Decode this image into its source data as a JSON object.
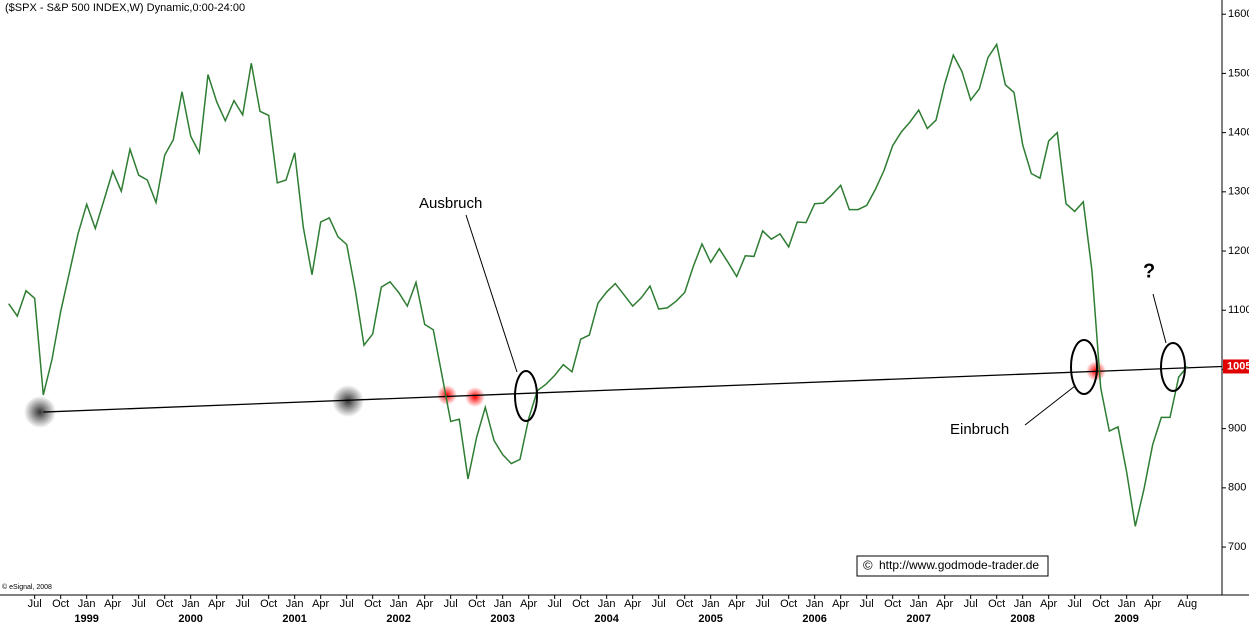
{
  "chart_data": {
    "type": "line",
    "title": "($SPX - S&P 500 INDEX,W) Dynamic,0:00-24:00",
    "x": [
      "1998-04",
      "1998-05",
      "1998-06",
      "1998-07",
      "1998-08",
      "1998-09",
      "1998-10",
      "1998-11",
      "1998-12",
      "1999-01",
      "1999-02",
      "1999-03",
      "1999-04",
      "1999-05",
      "1999-06",
      "1999-07",
      "1999-08",
      "1999-09",
      "1999-10",
      "1999-11",
      "1999-12",
      "2000-01",
      "2000-02",
      "2000-03",
      "2000-04",
      "2000-05",
      "2000-06",
      "2000-07",
      "2000-08",
      "2000-09",
      "2000-10",
      "2000-11",
      "2000-12",
      "2001-01",
      "2001-02",
      "2001-03",
      "2001-04",
      "2001-05",
      "2001-06",
      "2001-07",
      "2001-08",
      "2001-09",
      "2001-10",
      "2001-11",
      "2001-12",
      "2002-01",
      "2002-02",
      "2002-03",
      "2002-04",
      "2002-05",
      "2002-06",
      "2002-07",
      "2002-08",
      "2002-09",
      "2002-10",
      "2002-11",
      "2002-12",
      "2003-01",
      "2003-02",
      "2003-03",
      "2003-04",
      "2003-05",
      "2003-06",
      "2003-07",
      "2003-08",
      "2003-09",
      "2003-10",
      "2003-11",
      "2003-12",
      "2004-01",
      "2004-02",
      "2004-03",
      "2004-04",
      "2004-05",
      "2004-06",
      "2004-07",
      "2004-08",
      "2004-09",
      "2004-10",
      "2004-11",
      "2004-12",
      "2005-01",
      "2005-02",
      "2005-03",
      "2005-04",
      "2005-05",
      "2005-06",
      "2005-07",
      "2005-08",
      "2005-09",
      "2005-10",
      "2005-11",
      "2005-12",
      "2006-01",
      "2006-02",
      "2006-03",
      "2006-04",
      "2006-05",
      "2006-06",
      "2006-07",
      "2006-08",
      "2006-09",
      "2006-10",
      "2006-11",
      "2006-12",
      "2007-01",
      "2007-02",
      "2007-03",
      "2007-04",
      "2007-05",
      "2007-06",
      "2007-07",
      "2007-08",
      "2007-09",
      "2007-10",
      "2007-11",
      "2007-12",
      "2008-01",
      "2008-02",
      "2008-03",
      "2008-04",
      "2008-05",
      "2008-06",
      "2008-07",
      "2008-08",
      "2008-09",
      "2008-10",
      "2008-11",
      "2008-12",
      "2009-01",
      "2009-02",
      "2009-03",
      "2009-04",
      "2009-05",
      "2009-06",
      "2009-07",
      "2009-08"
    ],
    "series": [
      {
        "name": "$SPX",
        "color": "#2e7d32",
        "values": [
          1111,
          1090,
          1133,
          1120,
          957,
          1017,
          1098,
          1163,
          1229,
          1279,
          1238,
          1286,
          1335,
          1301,
          1372,
          1328,
          1320,
          1282,
          1362,
          1388,
          1469,
          1394,
          1366,
          1498,
          1452,
          1420,
          1454,
          1430,
          1517,
          1436,
          1429,
          1315,
          1320,
          1366,
          1240,
          1160,
          1249,
          1256,
          1224,
          1211,
          1134,
          1041,
          1060,
          1139,
          1148,
          1130,
          1107,
          1147,
          1076,
          1067,
          990,
          912,
          916,
          815,
          886,
          936,
          880,
          856,
          841,
          848,
          917,
          964,
          975,
          990,
          1008,
          996,
          1051,
          1058,
          1112,
          1131,
          1145,
          1126,
          1107,
          1121,
          1141,
          1102,
          1104,
          1115,
          1130,
          1174,
          1212,
          1181,
          1204,
          1181,
          1157,
          1192,
          1191,
          1234,
          1220,
          1229,
          1207,
          1249,
          1248,
          1280,
          1281,
          1295,
          1311,
          1270,
          1270,
          1277,
          1304,
          1336,
          1378,
          1401,
          1418,
          1438,
          1407,
          1421,
          1482,
          1531,
          1503,
          1455,
          1474,
          1527,
          1549,
          1481,
          1468,
          1379,
          1331,
          1323,
          1386,
          1400,
          1280,
          1267,
          1283,
          1166,
          969,
          896,
          903,
          826,
          735,
          798,
          873,
          919,
          919,
          987,
          1005
        ]
      }
    ],
    "xlim": [
      "1998-03",
      "2009-12"
    ],
    "xticks": [
      {
        "value": "1998-07",
        "label": "Jul"
      },
      {
        "value": "1998-10",
        "label": "Oct"
      },
      {
        "value": "1999-01",
        "label": "Jan"
      },
      {
        "value": "1999-04",
        "label": "Apr"
      },
      {
        "value": "1999-07",
        "label": "Jul"
      },
      {
        "value": "1999-10",
        "label": "Oct"
      },
      {
        "value": "2000-01",
        "label": "Jan"
      },
      {
        "value": "2000-04",
        "label": "Apr"
      },
      {
        "value": "2000-07",
        "label": "Jul"
      },
      {
        "value": "2000-10",
        "label": "Oct"
      },
      {
        "value": "2001-01",
        "label": "Jan"
      },
      {
        "value": "2001-04",
        "label": "Apr"
      },
      {
        "value": "2001-07",
        "label": "Jul"
      },
      {
        "value": "2001-10",
        "label": "Oct"
      },
      {
        "value": "2002-01",
        "label": "Jan"
      },
      {
        "value": "2002-04",
        "label": "Apr"
      },
      {
        "value": "2002-07",
        "label": "Jul"
      },
      {
        "value": "2002-10",
        "label": "Oct"
      },
      {
        "value": "2003-01",
        "label": "Jan"
      },
      {
        "value": "2003-04",
        "label": "Apr"
      },
      {
        "value": "2003-07",
        "label": "Jul"
      },
      {
        "value": "2003-10",
        "label": "Oct"
      },
      {
        "value": "2004-01",
        "label": "Jan"
      },
      {
        "value": "2004-04",
        "label": "Apr"
      },
      {
        "value": "2004-07",
        "label": "Jul"
      },
      {
        "value": "2004-10",
        "label": "Oct"
      },
      {
        "value": "2005-01",
        "label": "Jan"
      },
      {
        "value": "2005-04",
        "label": "Apr"
      },
      {
        "value": "2005-07",
        "label": "Jul"
      },
      {
        "value": "2005-10",
        "label": "Oct"
      },
      {
        "value": "2006-01",
        "label": "Jan"
      },
      {
        "value": "2006-04",
        "label": "Apr"
      },
      {
        "value": "2006-07",
        "label": "Jul"
      },
      {
        "value": "2006-10",
        "label": "Oct"
      },
      {
        "value": "2007-01",
        "label": "Jan"
      },
      {
        "value": "2007-04",
        "label": "Apr"
      },
      {
        "value": "2007-07",
        "label": "Jul"
      },
      {
        "value": "2007-10",
        "label": "Oct"
      },
      {
        "value": "2008-01",
        "label": "Jan"
      },
      {
        "value": "2008-04",
        "label": "Apr"
      },
      {
        "value": "2008-07",
        "label": "Jul"
      },
      {
        "value": "2008-10",
        "label": "Oct"
      },
      {
        "value": "2009-01",
        "label": "Jan"
      },
      {
        "value": "2009-04",
        "label": "Apr"
      },
      {
        "value": "2009-08",
        "label": "Aug"
      }
    ],
    "year_labels": [
      {
        "value": "1999-01",
        "label": "1999"
      },
      {
        "value": "2000-01",
        "label": "2000"
      },
      {
        "value": "2001-01",
        "label": "2001"
      },
      {
        "value": "2002-01",
        "label": "2002"
      },
      {
        "value": "2003-01",
        "label": "2003"
      },
      {
        "value": "2004-01",
        "label": "2004"
      },
      {
        "value": "2005-01",
        "label": "2005"
      },
      {
        "value": "2006-01",
        "label": "2006"
      },
      {
        "value": "2007-01",
        "label": "2007"
      },
      {
        "value": "2008-01",
        "label": "2008"
      },
      {
        "value": "2009-01",
        "label": "2009"
      }
    ],
    "ylim": [
      619,
      1624
    ],
    "yticks": [
      700,
      800,
      900,
      1000,
      1100,
      1200,
      1300,
      1400,
      1500,
      1600
    ],
    "last_price": {
      "value": 1005,
      "label": "1005",
      "color": "#e00000"
    },
    "support_line": {
      "start": [
        "1998-08",
        928
      ],
      "end": [
        "2009-12",
        1005
      ]
    },
    "annotations": [
      "Ausbruch",
      "Einbruch",
      "?"
    ],
    "copyright": "© eSignal, 2008",
    "source": "http://www.godmode-trader.de",
    "source_symbol": "©"
  }
}
